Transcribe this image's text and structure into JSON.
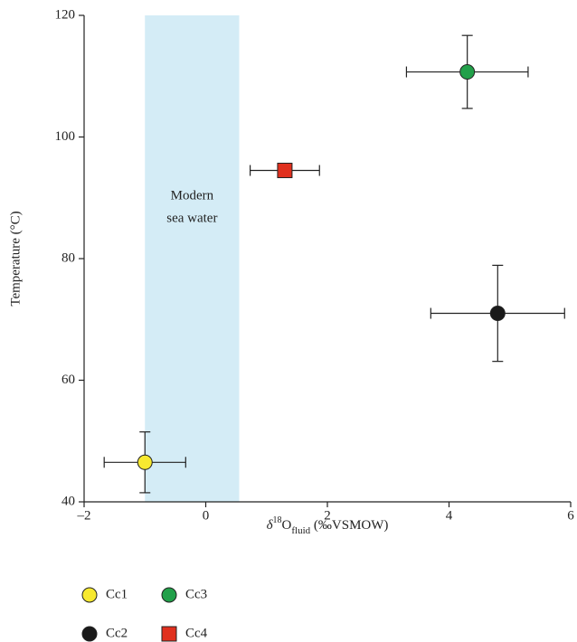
{
  "chart_data": {
    "type": "scatter",
    "xlabel": [
      "δ",
      "18",
      "O",
      "fluid",
      " (‰VSMOW)"
    ],
    "ylabel": "Temperature (°C)",
    "xlim": [
      -2,
      6
    ],
    "ylim": [
      40,
      120
    ],
    "xticks": [
      {
        "value": -2,
        "label": "–2"
      },
      0,
      2,
      4,
      6
    ],
    "yticks": [
      40,
      60,
      80,
      100,
      120
    ],
    "band": {
      "x": [
        -1,
        0.55
      ],
      "color": "#d4ecf6",
      "label": [
        "Modern",
        "sea water"
      ]
    },
    "series": [
      {
        "name": "Cc1",
        "color": "#f7e930",
        "marker": "circle",
        "x": [
          -1.0
        ],
        "values": [
          46.5
        ],
        "xerr": [
          0.67
        ],
        "yerr": [
          5.0
        ]
      },
      {
        "name": "Cc2",
        "color": "#1a1a1a",
        "marker": "circle",
        "x": [
          4.8
        ],
        "values": [
          71.0
        ],
        "xerr": [
          1.1
        ],
        "yerr": [
          7.9
        ]
      },
      {
        "name": "Cc3",
        "color": "#22a04a",
        "marker": "circle",
        "x": [
          4.3
        ],
        "values": [
          110.7
        ],
        "xerr": [
          1.0
        ],
        "yerr": [
          6.0
        ]
      },
      {
        "name": "Cc4",
        "color": "#e0301e",
        "marker": "square",
        "x": [
          1.3
        ],
        "values": [
          94.5
        ],
        "xerr": [
          0.57
        ]
      }
    ]
  }
}
